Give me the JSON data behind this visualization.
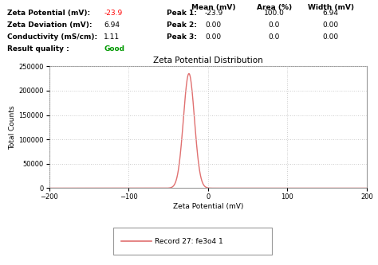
{
  "title": "Zeta Potential Distribution",
  "xlabel": "Zeta Potential (mV)",
  "ylabel": "Total Counts",
  "peak_mean": -23.9,
  "peak_std": 6.94,
  "peak_amplitude": 235000,
  "x_min": -200,
  "x_max": 200,
  "y_min": 0,
  "y_max": 250000,
  "y_ticks": [
    0,
    50000,
    100000,
    150000,
    200000,
    250000
  ],
  "x_ticks": [
    -200,
    -100,
    0,
    100,
    200
  ],
  "line_color": "#e07070",
  "legend_label": "Record 27: fe3o4 1",
  "left_labels": [
    [
      "Zeta Potential (mV): ",
      "-23.9",
      "red"
    ],
    [
      "Zeta Deviation (mV): ",
      "6.94",
      "black"
    ],
    [
      "Conductivity (mS/cm): ",
      "1.11",
      "black"
    ],
    [
      "Result quality : ",
      "Good",
      "#009900"
    ]
  ],
  "peak_labels": [
    "Peak 1:",
    "Peak 2:",
    "Peak 3:"
  ],
  "peak_data": [
    [
      "-23.9",
      "100.0",
      "6.94"
    ],
    [
      "0.00",
      "0.0",
      "0.00"
    ],
    [
      "0.00",
      "0.0",
      "0.00"
    ]
  ],
  "col_headers": [
    "Mean (mV)",
    "Area (%)",
    "Width (mV)"
  ],
  "bg_color": "#ffffff",
  "plot_bg_color": "#ffffff",
  "border_color": "#999999",
  "grid_color": "#cccccc",
  "font_size": 6.5,
  "title_font_size": 7.5
}
